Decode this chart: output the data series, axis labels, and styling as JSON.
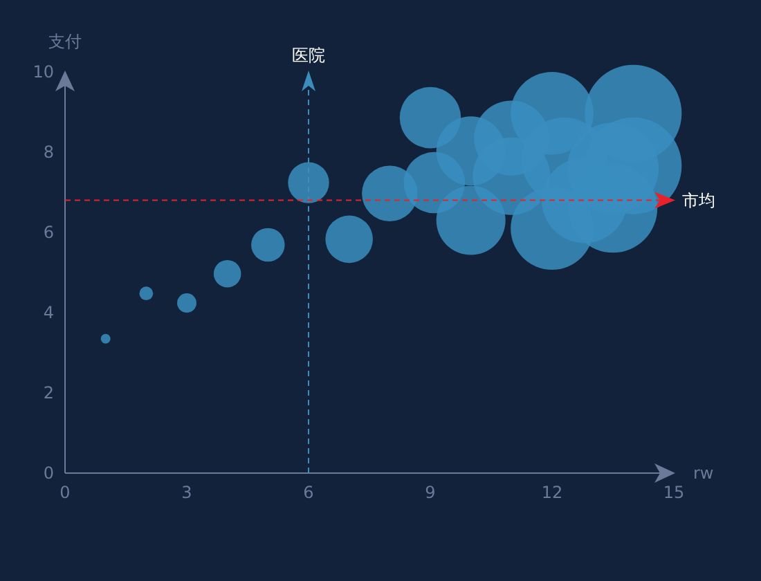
{
  "chart_data": {
    "type": "bubble",
    "xlabel": "rw",
    "ylabel": "支付",
    "xlim": [
      0,
      15
    ],
    "ylim": [
      0,
      10
    ],
    "xticks": [
      0,
      3,
      6,
      9,
      12,
      15
    ],
    "yticks": [
      0,
      2,
      4,
      6,
      8,
      10
    ],
    "grid": false,
    "x": [
      1,
      2,
      3,
      4,
      5,
      6,
      7,
      8,
      9,
      9.1,
      10,
      10,
      11,
      11,
      12,
      12,
      12.3,
      12.8,
      13.5,
      13.5,
      14,
      14
    ],
    "series": [
      {
        "color": "#3a8ebf",
        "values": [
          3.35,
          4.48,
          4.24,
          4.97,
          5.69,
          7.24,
          5.83,
          6.97,
          8.86,
          7.24,
          8.03,
          6.3,
          8.35,
          7.4,
          8.97,
          6.1,
          7.8,
          6.8,
          6.6,
          7.6,
          8.97,
          7.66
        ],
        "sizes": [
          0.01,
          0.02,
          0.04,
          0.08,
          0.12,
          0.18,
          0.24,
          0.33,
          0.4,
          0.4,
          0.51,
          0.51,
          0.6,
          0.64,
          0.73,
          0.73,
          0.78,
          0.78,
          0.84,
          0.89,
          1,
          1
        ]
      }
    ],
    "ref_lines": [
      {
        "axis": "x",
        "value": 6,
        "label": "医院",
        "color": "#3c8dbd",
        "line_style": "dashed"
      },
      {
        "axis": "y",
        "value": 6.8,
        "label": "市均",
        "color": "#e8212b",
        "line_style": "dashed"
      }
    ]
  }
}
